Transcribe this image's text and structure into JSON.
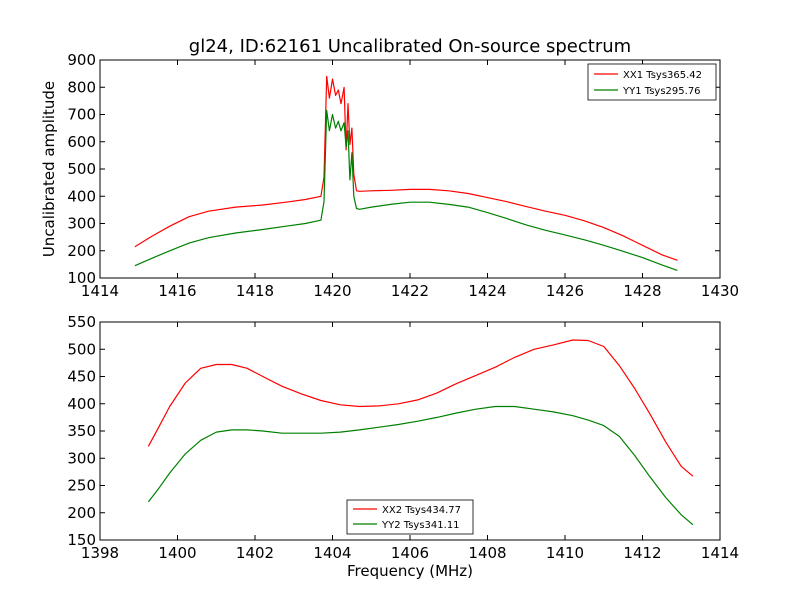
{
  "chart_data": [
    {
      "type": "line",
      "title": "gl24, ID:62161 Uncalibrated On-source spectrum",
      "xlabel": "",
      "ylabel": "Uncalibrated amplitude",
      "xlim": [
        1414,
        1430
      ],
      "ylim": [
        100,
        900
      ],
      "xticks": [
        1414,
        1416,
        1418,
        1420,
        1422,
        1424,
        1426,
        1428,
        1430
      ],
      "yticks": [
        100,
        200,
        300,
        400,
        500,
        600,
        700,
        800,
        900
      ],
      "legend_position": "top-right",
      "series": [
        {
          "name": "XX1 Tsys365.42",
          "color": "#ff0000",
          "x": [
            1414.9,
            1415.3,
            1415.8,
            1416.3,
            1416.8,
            1417.5,
            1418.2,
            1418.8,
            1419.3,
            1419.7,
            1419.78,
            1419.85,
            1419.92,
            1420.0,
            1420.08,
            1420.15,
            1420.22,
            1420.3,
            1420.35,
            1420.4,
            1420.45,
            1420.5,
            1420.55,
            1420.62,
            1420.7,
            1421.0,
            1421.5,
            1422.0,
            1422.5,
            1423.0,
            1423.5,
            1424.0,
            1424.5,
            1425.0,
            1425.5,
            1426.0,
            1426.5,
            1427.0,
            1427.5,
            1428.0,
            1428.5,
            1428.9
          ],
          "values": [
            215,
            250,
            290,
            325,
            345,
            360,
            368,
            378,
            388,
            400,
            470,
            840,
            760,
            830,
            770,
            790,
            740,
            800,
            570,
            740,
            590,
            650,
            480,
            420,
            418,
            420,
            422,
            425,
            425,
            420,
            410,
            395,
            380,
            362,
            345,
            330,
            310,
            285,
            255,
            220,
            185,
            165
          ]
        },
        {
          "name": "YY1 Tsys295.76",
          "color": "#008000",
          "x": [
            1414.9,
            1415.3,
            1415.8,
            1416.3,
            1416.8,
            1417.5,
            1418.2,
            1418.8,
            1419.3,
            1419.7,
            1419.78,
            1419.85,
            1419.92,
            1420.0,
            1420.08,
            1420.15,
            1420.22,
            1420.3,
            1420.35,
            1420.4,
            1420.45,
            1420.5,
            1420.55,
            1420.62,
            1420.7,
            1421.0,
            1421.5,
            1422.0,
            1422.5,
            1423.0,
            1423.5,
            1424.0,
            1424.5,
            1425.0,
            1425.5,
            1426.0,
            1426.5,
            1427.0,
            1427.5,
            1428.0,
            1428.5,
            1428.9
          ],
          "values": [
            145,
            170,
            200,
            228,
            248,
            265,
            278,
            290,
            300,
            312,
            380,
            715,
            640,
            700,
            650,
            675,
            640,
            670,
            580,
            640,
            460,
            560,
            400,
            355,
            352,
            360,
            370,
            378,
            378,
            370,
            360,
            340,
            318,
            295,
            275,
            258,
            240,
            220,
            198,
            175,
            148,
            128
          ]
        }
      ]
    },
    {
      "type": "line",
      "title": "",
      "xlabel": "Frequency (MHz)",
      "ylabel": "",
      "xlim": [
        1398,
        1414
      ],
      "ylim": [
        150,
        550
      ],
      "xticks": [
        1398,
        1400,
        1402,
        1404,
        1406,
        1408,
        1410,
        1412,
        1414
      ],
      "yticks": [
        150,
        200,
        250,
        300,
        350,
        400,
        450,
        500,
        550
      ],
      "legend_position": "bottom-center",
      "series": [
        {
          "name": "XX2 Tsys434.77",
          "color": "#ff0000",
          "x": [
            1399.25,
            1399.5,
            1399.8,
            1400.2,
            1400.6,
            1401.0,
            1401.4,
            1401.8,
            1402.2,
            1402.7,
            1403.2,
            1403.7,
            1404.2,
            1404.7,
            1405.2,
            1405.7,
            1406.2,
            1406.7,
            1407.2,
            1407.7,
            1408.2,
            1408.7,
            1409.2,
            1409.7,
            1410.2,
            1410.6,
            1411.0,
            1411.4,
            1411.8,
            1412.2,
            1412.6,
            1413.0,
            1413.3
          ],
          "values": [
            322,
            355,
            395,
            438,
            465,
            472,
            472,
            465,
            450,
            432,
            418,
            406,
            398,
            395,
            396,
            400,
            407,
            420,
            437,
            452,
            467,
            485,
            500,
            508,
            517,
            516,
            505,
            470,
            428,
            380,
            330,
            285,
            267
          ]
        },
        {
          "name": "YY2 Tsys341.11",
          "color": "#008000",
          "x": [
            1399.25,
            1399.5,
            1399.8,
            1400.2,
            1400.6,
            1401.0,
            1401.4,
            1401.8,
            1402.2,
            1402.7,
            1403.2,
            1403.7,
            1404.2,
            1404.7,
            1405.2,
            1405.7,
            1406.2,
            1406.7,
            1407.2,
            1407.7,
            1408.2,
            1408.7,
            1409.2,
            1409.7,
            1410.2,
            1410.6,
            1411.0,
            1411.4,
            1411.8,
            1412.2,
            1412.6,
            1413.0,
            1413.3
          ],
          "values": [
            220,
            243,
            273,
            308,
            333,
            348,
            352,
            352,
            350,
            346,
            346,
            346,
            348,
            352,
            357,
            362,
            368,
            375,
            383,
            390,
            395,
            395,
            390,
            385,
            378,
            370,
            360,
            340,
            305,
            265,
            228,
            196,
            178
          ]
        }
      ]
    }
  ]
}
